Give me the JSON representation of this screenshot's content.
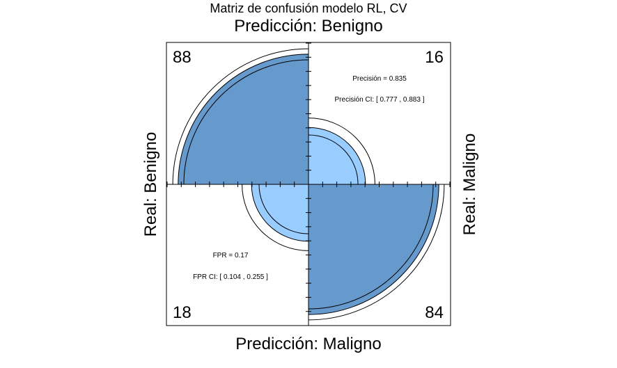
{
  "chart_data": {
    "type": "fourfold",
    "title": "Matriz de confusión modelo RL, CV",
    "labels": {
      "top": "Predicción: Benigno",
      "bottom": "Predicción: Maligno",
      "left": "Real: Benigno",
      "right": "Real: Maligno"
    },
    "counts": {
      "top_left": "88",
      "top_right": "16",
      "bottom_left": "18",
      "bottom_right": "84"
    },
    "precision": {
      "text": "Precisión =  0.835",
      "ci_text": "Precisión CI: [ 0.777 , 0.883 ]"
    },
    "fpr": {
      "text": "FPR =  0.17",
      "ci_text": "FPR CI: [ 0.104 , 0.255 ]"
    },
    "quadrants": {
      "top_left": {
        "radius_frac": 0.922,
        "ci_inner_frac": 0.882,
        "ci_outer_frac": 0.96
      },
      "top_right": {
        "radius_frac": 0.403,
        "ci_inner_frac": 0.35,
        "ci_outer_frac": 0.47
      },
      "bottom_left": {
        "radius_frac": 0.403,
        "ci_inner_frac": 0.35,
        "ci_outer_frac": 0.47
      },
      "bottom_right": {
        "radius_frac": 0.922,
        "ci_inner_frac": 0.882,
        "ci_outer_frac": 0.96
      }
    },
    "colors": {
      "dark_fill": "#6699cc",
      "light_fill": "#99ccff",
      "stroke": "#000000"
    }
  }
}
